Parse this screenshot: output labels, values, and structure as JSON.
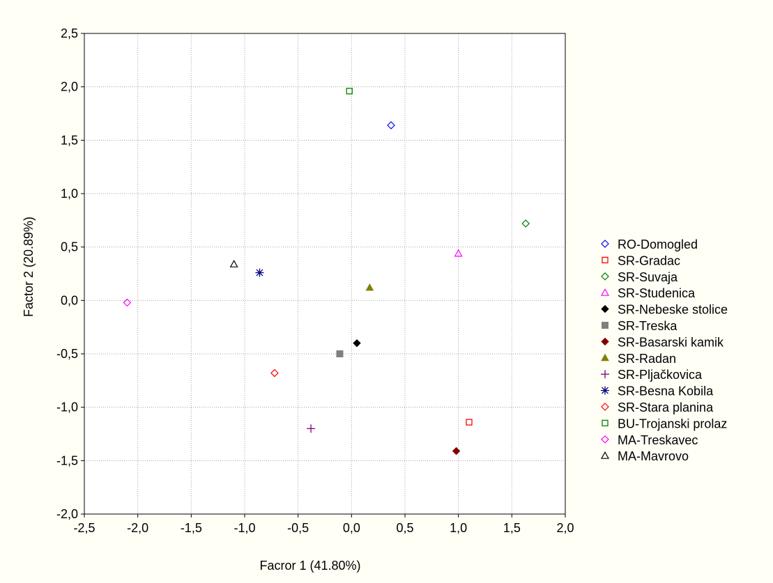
{
  "chart_data": {
    "type": "scatter",
    "xlabel": "Facror 1 (41.80%)",
    "ylabel": "Factor 2 (20.89%)",
    "xlim": [
      -2.5,
      2.0
    ],
    "ylim": [
      -2.0,
      2.5
    ],
    "x_ticks": [
      "-2,5",
      "-2,0",
      "-1,5",
      "-1,0",
      "-0,5",
      "0,0",
      "0,5",
      "1,0",
      "1,5",
      "2,0"
    ],
    "y_ticks": [
      "2,5",
      "2,0",
      "1,5",
      "1,0",
      "0,5",
      "0,0",
      "-0,5",
      "-1,0",
      "-1,5",
      "-2,0"
    ],
    "grid": true,
    "legend_position": "right",
    "series": [
      {
        "name": "RO-Domogled",
        "x": 0.37,
        "y": 1.64,
        "marker": "diamond-open",
        "color": "#0000ff"
      },
      {
        "name": "SR-Gradac",
        "x": 1.1,
        "y": -1.14,
        "marker": "square-open",
        "color": "#ff0000"
      },
      {
        "name": "SR-Suvaja",
        "x": 1.63,
        "y": 0.72,
        "marker": "diamond-open",
        "color": "#008000"
      },
      {
        "name": "SR-Studenica",
        "x": 1.0,
        "y": 0.44,
        "marker": "triangle-open",
        "color": "#ff00ff"
      },
      {
        "name": "SR-Nebeske stolice",
        "x": 0.05,
        "y": -0.4,
        "marker": "diamond-filled",
        "color": "#000000"
      },
      {
        "name": "SR-Treska",
        "x": -0.11,
        "y": -0.5,
        "marker": "square-filled",
        "color": "#808080"
      },
      {
        "name": "SR-Basarski kamik",
        "x": 0.98,
        "y": -1.41,
        "marker": "diamond-filled",
        "color": "#800000"
      },
      {
        "name": "SR-Radan",
        "x": 0.17,
        "y": 0.12,
        "marker": "triangle-filled",
        "color": "#808000"
      },
      {
        "name": "SR-Pljačkovica",
        "x": -0.38,
        "y": -1.2,
        "marker": "plus",
        "color": "#800080"
      },
      {
        "name": "SR-Besna Kobila",
        "x": -0.86,
        "y": 0.26,
        "marker": "asterisk",
        "color": "#000080"
      },
      {
        "name": "SR-Stara planina",
        "x": -0.72,
        "y": -0.68,
        "marker": "diamond-open",
        "color": "#ff0000"
      },
      {
        "name": "BU-Trojanski prolaz",
        "x": -0.02,
        "y": 1.96,
        "marker": "square-open",
        "color": "#008000"
      },
      {
        "name": "MA-Treskavec",
        "x": -2.1,
        "y": -0.02,
        "marker": "diamond-open",
        "color": "#ff00ff"
      },
      {
        "name": "MA-Mavrovo",
        "x": -1.1,
        "y": 0.34,
        "marker": "triangle-open",
        "color": "#000000"
      }
    ]
  }
}
